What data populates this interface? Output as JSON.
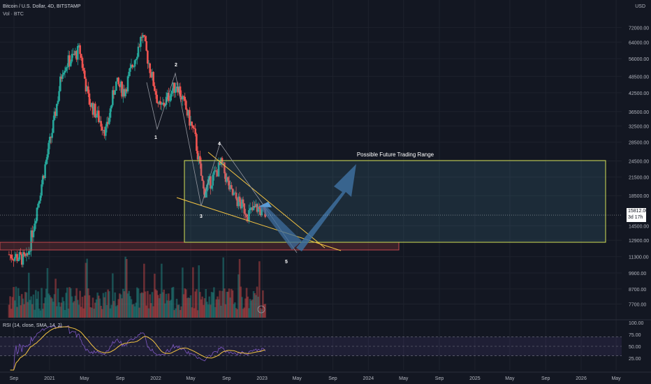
{
  "header": {
    "symbol": "Bitcoin / U.S. Dollar, 4D, BITSTAMP",
    "volume": "Vol · BTC"
  },
  "price_axis": {
    "unit": "USD",
    "ticks": [
      "72000.00",
      "64000.00",
      "56000.00",
      "48500.00",
      "42500.00",
      "36500.00",
      "32500.00",
      "28500.00",
      "24500.00",
      "21500.00",
      "18500.00",
      "14500.00",
      "12900.00",
      "11300.00",
      "9900.00",
      "8700.00",
      "7700.00"
    ]
  },
  "last_price": {
    "value": "15812.00",
    "countdown": "3d 17h"
  },
  "annotations": {
    "wave_labels": [
      "1",
      "2",
      "3",
      "4",
      "5"
    ],
    "range_label": "Possible Future Trading Range"
  },
  "rsi": {
    "legend": "RSI (14, close, SMA, 14, 2)",
    "ticks": [
      "100.00",
      "75.00",
      "50.00",
      "25.00"
    ]
  },
  "time_axis": {
    "labels": [
      "Sep",
      "2021",
      "May",
      "Sep",
      "2022",
      "May",
      "Sep",
      "2023",
      "May",
      "Sep",
      "2024",
      "May",
      "Sep",
      "2025",
      "May",
      "Sep",
      "2026",
      "May"
    ]
  },
  "colors": {
    "background": "#131722",
    "up": "#26a69a",
    "down": "#ef5350",
    "box": "#d4e157",
    "arrow": "#3d6e9e",
    "rsi_line": "#7e57c2",
    "rsi_ma": "#f5c542"
  },
  "chart_data": {
    "type": "candlestick",
    "scale": "log",
    "ylim": [
      6900,
      85000
    ],
    "anchors": [
      {
        "date": "2020-08",
        "price": 11500
      },
      {
        "date": "2020-10",
        "price": 11000
      },
      {
        "date": "2020-12",
        "price": 23000
      },
      {
        "date": "2021-01",
        "price": 33000
      },
      {
        "date": "2021-02",
        "price": 52000
      },
      {
        "date": "2021-04",
        "price": 60000
      },
      {
        "date": "2021-05",
        "price": 40000
      },
      {
        "date": "2021-07",
        "price": 31000
      },
      {
        "date": "2021-08",
        "price": 46000
      },
      {
        "date": "2021-09",
        "price": 43000
      },
      {
        "date": "2021-11",
        "price": 68000
      },
      {
        "date": "2022-01",
        "price": 37000
      },
      {
        "date": "2022-03",
        "price": 46000
      },
      {
        "date": "2022-05",
        "price": 30000
      },
      {
        "date": "2022-06",
        "price": 19000
      },
      {
        "date": "2022-08",
        "price": 24000
      },
      {
        "date": "2022-09",
        "price": 19000
      },
      {
        "date": "2022-11",
        "price": 16000
      },
      {
        "date": "2022-12",
        "price": 16800
      },
      {
        "date": "2023-01",
        "price": 15812
      }
    ],
    "rsi_range": [
      0,
      100
    ],
    "rsi_levels": [
      70,
      50,
      30
    ]
  }
}
